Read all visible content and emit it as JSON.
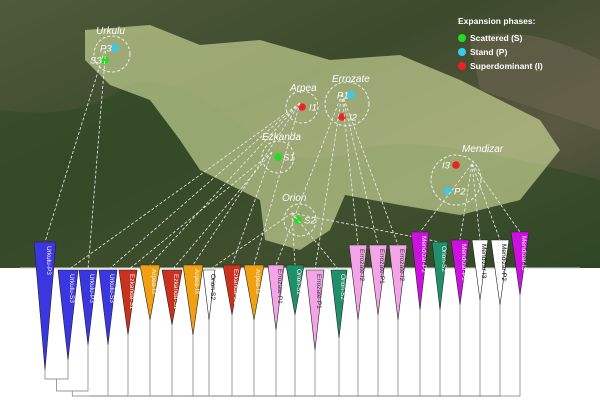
{
  "legend": {
    "title": "Expansion phases:",
    "items": [
      "Scattered (S)",
      "Stand (P)",
      "Superdominant (I)"
    ]
  },
  "sites": [
    "Urkulu",
    "Arpea",
    "Errozate",
    "Ezkanda",
    "Orion",
    "Mendizar"
  ],
  "points": [
    "P3",
    "S3",
    "I1",
    "P1",
    "I2",
    "S1",
    "I3",
    "P2",
    "S2"
  ],
  "tree": {
    "leaves": [
      "Urkulu-P3",
      "Urkulu-S3",
      "Urkulu-P3",
      "Urkulu-S3",
      "Ezkanda-S1",
      "Arpea-I3",
      "Ezkanda-S1",
      "Arpea-I3",
      "Orion-S2",
      "Ezkanda-S1",
      "Arpea-I3",
      "Errozate-P1",
      "Orion-S2",
      "Errozate-P1",
      "Orion-S2",
      "Errozate-I2",
      "Errozate-P1",
      "Errozate-I2",
      "Mendizar-P2",
      "Orion-S2",
      "Mendizar-P2",
      "Mendizar-I3",
      "Mendizar-P2",
      "Mendizar-I3"
    ]
  }
}
